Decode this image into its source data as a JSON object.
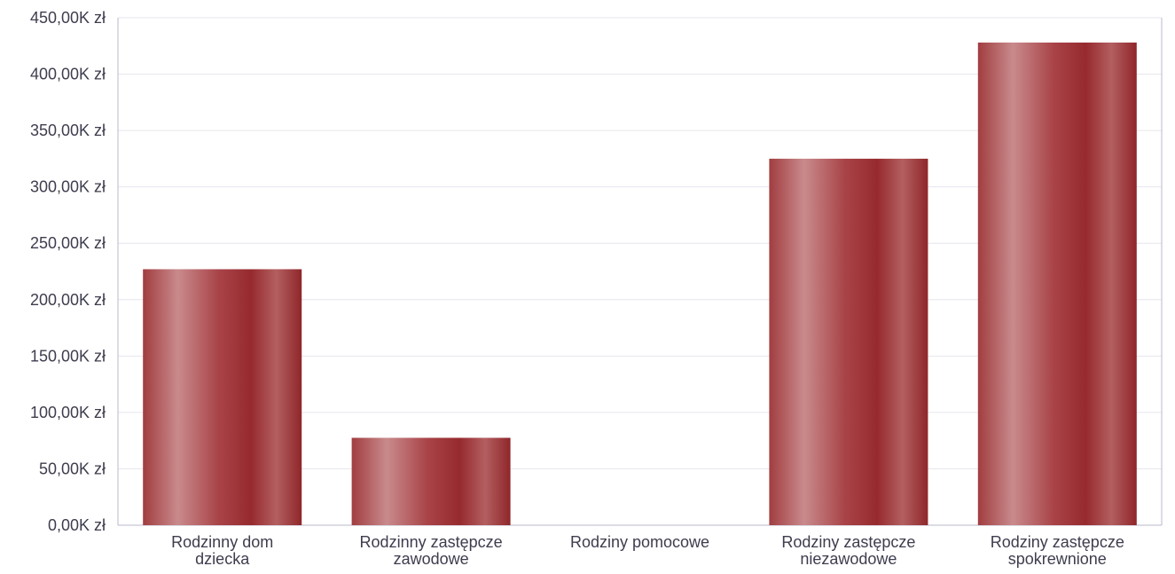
{
  "chart_data": {
    "type": "bar",
    "title": "",
    "xlabel": "",
    "ylabel": "",
    "categories": [
      [
        "Rodzinny dom",
        "dziecka"
      ],
      [
        "Rodzinny zastępcze",
        "zawodowe"
      ],
      [
        "Rodziny pomocowe"
      ],
      [
        "Rodziny zastępcze",
        "niezawodowe"
      ],
      [
        "Rodziny zastępcze",
        "spokrewnione"
      ]
    ],
    "values": [
      227000,
      77500,
      0,
      325000,
      428000
    ],
    "ylim": [
      0,
      450000
    ],
    "y_ticks": [
      {
        "value": 0,
        "label": "0,00K zł"
      },
      {
        "value": 50000,
        "label": "50,00K zł"
      },
      {
        "value": 100000,
        "label": "100,00K zł"
      },
      {
        "value": 150000,
        "label": "150,00K zł"
      },
      {
        "value": 200000,
        "label": "200,00K zł"
      },
      {
        "value": 250000,
        "label": "250,00K zł"
      },
      {
        "value": 300000,
        "label": "300,00K zł"
      },
      {
        "value": 350000,
        "label": "350,00K zł"
      },
      {
        "value": 400000,
        "label": "400,00K zł"
      },
      {
        "value": 450000,
        "label": "450,00K zł"
      }
    ],
    "grid": true,
    "legend": "none",
    "bar_color": "#9b2f33",
    "bar_highlight_color": "#c98a8c"
  }
}
